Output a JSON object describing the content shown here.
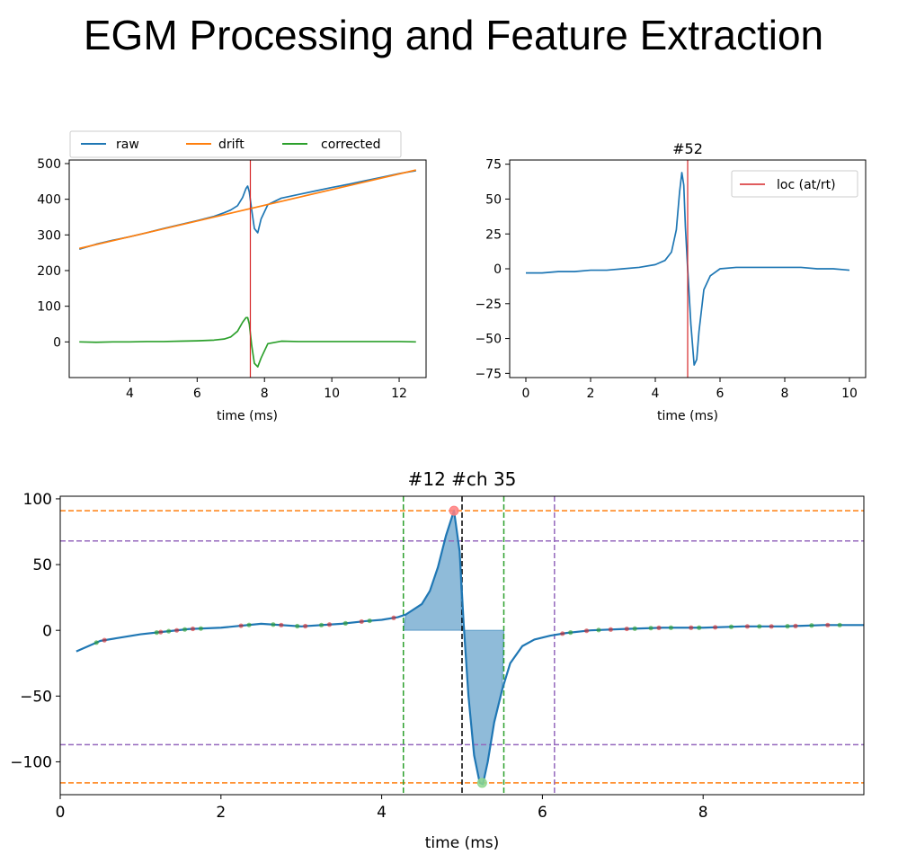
{
  "slide": {
    "title": "EGM Processing and Feature Extraction"
  },
  "chart_data": [
    {
      "type": "line",
      "title": "",
      "xlabel": "time (ms)",
      "ylabel": "",
      "xlim": [
        2.2,
        12.8
      ],
      "ylim": [
        -100,
        510
      ],
      "xticks": [
        4,
        6,
        8,
        10,
        12
      ],
      "yticks": [
        0,
        100,
        200,
        300,
        400,
        500
      ],
      "legend": {
        "placement": "above-top",
        "entries": [
          "raw",
          "drift",
          "corrected"
        ]
      },
      "series": [
        {
          "name": "raw",
          "color": "#1f77b4",
          "x": [
            2.5,
            3,
            3.5,
            4,
            4.5,
            5,
            5.5,
            6,
            6.5,
            6.8,
            7.0,
            7.2,
            7.35,
            7.45,
            7.5,
            7.55,
            7.62,
            7.7,
            7.8,
            7.9,
            8.1,
            8.5,
            9,
            9.5,
            10,
            10.5,
            11,
            11.5,
            12,
            12.5
          ],
          "y": [
            260,
            274,
            285,
            295,
            306,
            318,
            329,
            340,
            352,
            362,
            370,
            382,
            405,
            430,
            437,
            420,
            370,
            318,
            306,
            345,
            385,
            403,
            413,
            423,
            433,
            442,
            452,
            462,
            472,
            480
          ]
        },
        {
          "name": "drift",
          "color": "#ff7f0e",
          "x": [
            2.5,
            12.5
          ],
          "y": [
            262,
            482
          ]
        },
        {
          "name": "corrected",
          "color": "#2ca02c",
          "x": [
            2.5,
            3,
            3.5,
            4,
            4.5,
            5,
            5.5,
            6,
            6.5,
            6.8,
            7.0,
            7.2,
            7.35,
            7.45,
            7.5,
            7.55,
            7.62,
            7.7,
            7.8,
            7.9,
            8.1,
            8.5,
            9,
            9.5,
            10,
            10.5,
            11,
            11.5,
            12,
            12.5
          ],
          "y": [
            0,
            -1,
            0,
            0,
            1,
            1,
            2,
            3,
            5,
            8,
            14,
            30,
            55,
            68,
            68,
            50,
            -10,
            -60,
            -70,
            -45,
            -5,
            2,
            1,
            1,
            1,
            1,
            1,
            1,
            1,
            0
          ]
        }
      ],
      "vlines": [
        {
          "x": 7.58,
          "color": "#d62728",
          "style": "solid"
        }
      ]
    },
    {
      "type": "line",
      "title": "#52",
      "xlabel": "time (ms)",
      "ylabel": "",
      "xlim": [
        -0.5,
        10.5
      ],
      "ylim": [
        -78,
        78
      ],
      "xticks": [
        0,
        2,
        4,
        6,
        8,
        10
      ],
      "yticks": [
        75,
        50,
        25,
        0,
        -25,
        -50,
        -75
      ],
      "legend": {
        "placement": "top-right",
        "entries": [
          "loc (at/rt)"
        ]
      },
      "series": [
        {
          "name": "",
          "color": "#1f77b4",
          "x": [
            0,
            0.5,
            1,
            1.5,
            2,
            2.5,
            3,
            3.5,
            4,
            4.3,
            4.5,
            4.65,
            4.75,
            4.82,
            4.88,
            4.93,
            5.0,
            5.1,
            5.2,
            5.28,
            5.35,
            5.5,
            5.7,
            6,
            6.5,
            7,
            7.5,
            8,
            8.5,
            9,
            9.5,
            10
          ],
          "y": [
            -3,
            -3,
            -2,
            -2,
            -1,
            -1,
            0,
            1,
            3,
            6,
            12,
            28,
            55,
            69,
            60,
            30,
            0,
            -40,
            -69,
            -65,
            -45,
            -15,
            -5,
            0,
            1,
            1,
            1,
            1,
            1,
            0,
            0,
            -1
          ]
        }
      ],
      "vlines": [
        {
          "x": 5.0,
          "color": "#d62728",
          "style": "solid",
          "name": "loc (at/rt)"
        }
      ]
    },
    {
      "type": "line",
      "title": "#12 #ch 35",
      "xlabel": "time (ms)",
      "ylabel": "",
      "xlim": [
        0,
        10
      ],
      "ylim": [
        -125,
        102
      ],
      "xticks": [
        0,
        2,
        4,
        6,
        8
      ],
      "yticks": [
        100,
        50,
        0,
        -50,
        -100
      ],
      "series": [
        {
          "name": "",
          "color": "#1f77b4",
          "x": [
            0.2,
            0.35,
            0.5,
            0.7,
            1.0,
            1.3,
            1.6,
            2.0,
            2.5,
            3.0,
            3.5,
            3.8,
            4.0,
            4.2,
            4.3,
            4.5,
            4.6,
            4.7,
            4.8,
            4.9,
            4.97,
            5.02,
            5.08,
            5.15,
            5.22,
            5.26,
            5.32,
            5.4,
            5.5,
            5.6,
            5.75,
            5.9,
            6.1,
            6.3,
            6.6,
            7.0,
            7.5,
            8.0,
            8.5,
            9.0,
            9.5,
            10.0
          ],
          "y": [
            -16,
            -12,
            -8,
            -6,
            -3,
            -1,
            1,
            2,
            5,
            3,
            5,
            7,
            8,
            10,
            12,
            20,
            30,
            48,
            72,
            91,
            60,
            5,
            -50,
            -95,
            -116,
            -117,
            -100,
            -70,
            -45,
            -25,
            -12,
            -7,
            -4,
            -2,
            0,
            1,
            2,
            2,
            3,
            3,
            4,
            4
          ]
        }
      ],
      "fill_regions": [
        {
          "x_from": 4.27,
          "x_to": 5.0,
          "side": "positive",
          "color": "#1f77b4"
        },
        {
          "x_from": 5.0,
          "x_to": 5.52,
          "side": "negative",
          "color": "#1f77b4"
        }
      ],
      "hlines": [
        {
          "y": 91,
          "color": "#ff7f0e",
          "style": "dashed"
        },
        {
          "y": -116,
          "color": "#ff7f0e",
          "style": "dashed"
        },
        {
          "y": 68,
          "color": "#9467bd",
          "style": "dashed"
        },
        {
          "y": -87,
          "color": "#9467bd",
          "style": "dashed"
        }
      ],
      "vlines": [
        {
          "x": 4.27,
          "color": "#2ca02c",
          "style": "dashed"
        },
        {
          "x": 5.52,
          "color": "#2ca02c",
          "style": "dashed"
        },
        {
          "x": 5.0,
          "color": "#000000",
          "style": "dashed"
        },
        {
          "x": 6.15,
          "color": "#9467bd",
          "style": "dashed"
        }
      ],
      "extrema_markers": [
        {
          "x": 4.9,
          "y": 91,
          "color": "#ff7f7f"
        },
        {
          "x": 5.25,
          "y": -116,
          "color": "#8fd88f"
        }
      ],
      "small_markers": {
        "red": [
          0.55,
          1.25,
          1.45,
          1.65,
          2.25,
          2.75,
          3.05,
          3.35,
          3.75,
          4.15,
          6.25,
          6.55,
          6.85,
          7.05,
          7.45,
          7.85,
          8.15,
          8.55,
          8.85,
          9.15,
          9.55
        ],
        "green": [
          0.45,
          1.2,
          1.35,
          1.55,
          1.75,
          2.35,
          2.65,
          2.95,
          3.25,
          3.55,
          3.85,
          6.35,
          6.7,
          7.15,
          7.35,
          7.6,
          7.95,
          8.35,
          8.7,
          9.05,
          9.35,
          9.7
        ]
      }
    }
  ]
}
